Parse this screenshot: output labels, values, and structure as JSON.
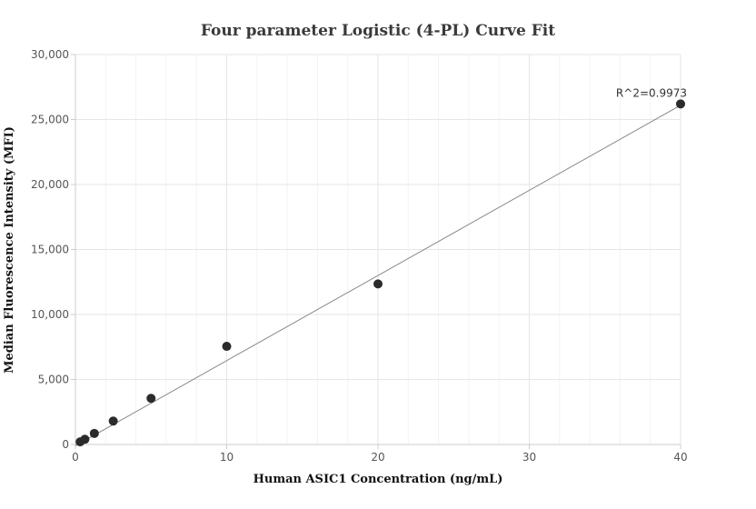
{
  "chart_data": {
    "type": "scatter",
    "title": "Four parameter Logistic (4-PL) Curve Fit",
    "xlabel": "Human ASIC1 Concentration (ng/mL)",
    "ylabel": "Median Fluorescence Intensity (MFI)",
    "xlim": [
      0,
      40
    ],
    "ylim": [
      0,
      30000
    ],
    "x_ticks": [
      0,
      10,
      20,
      30,
      40
    ],
    "y_ticks": [
      0,
      5000,
      10000,
      15000,
      20000,
      25000,
      30000
    ],
    "x_tick_labels": [
      "0",
      "10",
      "20",
      "30",
      "40"
    ],
    "y_tick_labels": [
      "0",
      "5,000",
      "10,000",
      "15,000",
      "20,000",
      "25,000",
      "30,000"
    ],
    "grid": true,
    "x": [
      0.3125,
      0.625,
      1.25,
      2.5,
      5,
      10,
      20,
      40
    ],
    "y": [
      200,
      400,
      850,
      1800,
      3550,
      7550,
      12350,
      26200
    ],
    "fit_line": {
      "x": [
        0,
        40
      ],
      "y": [
        -100,
        26100
      ]
    },
    "annotation": {
      "text": "R^2=0.9973",
      "x": 40,
      "y": 26200
    },
    "colors": {
      "points": "#2b2b2b",
      "fit_line": "#888888",
      "grid": "#e6e6e6",
      "axis": "#cccccc"
    }
  }
}
